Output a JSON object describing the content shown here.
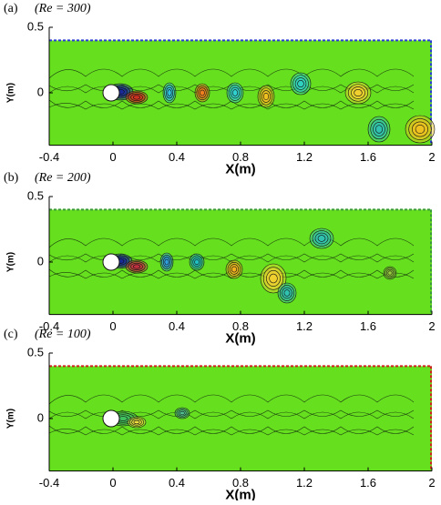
{
  "chart_data": [
    {
      "type": "contour",
      "panel_label": "(a)",
      "title": "(Re = 300)",
      "xlabel": "X(m)",
      "ylabel": "Y(m)",
      "xlim": [
        -0.4,
        2
      ],
      "ylim": [
        -0.4,
        0.5
      ],
      "xticks": [
        -0.4,
        0,
        0.4,
        0.8,
        1.2,
        1.6,
        2
      ],
      "yticks": [
        0,
        0.5
      ],
      "color": "#66e01e",
      "boundary_color": "#2a3cd8"
    },
    {
      "type": "contour",
      "panel_label": "(b)",
      "title": "(Re = 200)",
      "xlabel": "X(m)",
      "ylabel": "Y(m)",
      "xlim": [
        -0.4,
        2
      ],
      "ylim": [
        -0.4,
        0.5
      ],
      "xticks": [
        -0.4,
        0,
        0.4,
        0.8,
        1.2,
        1.6,
        2
      ],
      "yticks": [
        0,
        0.5
      ],
      "color": "#66e01e",
      "boundary_color": "#3a9a3a"
    },
    {
      "type": "contour",
      "panel_label": "(c)",
      "title": "(Re = 100)",
      "xlabel": "X(m)",
      "ylabel": "Y(m)",
      "xlim": [
        -0.4,
        2
      ],
      "ylim": [
        -0.4,
        0.5
      ],
      "xticks": [
        -0.4,
        0,
        0.4,
        0.8,
        1.2,
        1.6,
        2
      ],
      "yticks": [
        0,
        0.5
      ],
      "color": "#66e01e",
      "boundary_color": "#d02020"
    }
  ]
}
